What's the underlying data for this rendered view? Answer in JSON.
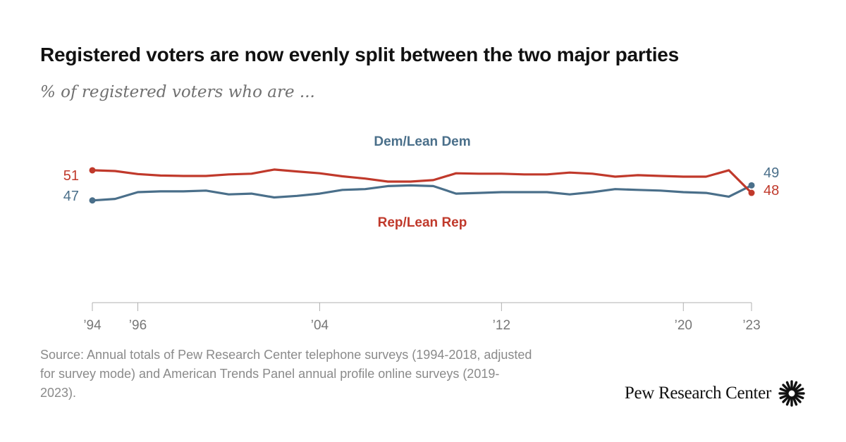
{
  "title": "Registered voters are now evenly split between the two major parties",
  "subtitle": "% of registered voters who are ...",
  "source": "Source: Annual totals of Pew Research Center telephone surveys (1994-2018, adjusted for survey mode) and American Trends Panel annual profile online surveys (2019-2023).",
  "brand": "Pew Research Center",
  "colors": {
    "dem": "#4a6f8a",
    "rep": "#c0392b",
    "axis": "#b0b0b0",
    "tick_text": "#777777"
  },
  "chart_data": {
    "type": "line",
    "title": "Registered voters are now evenly split between the two major parties",
    "subtitle": "% of registered voters who are ...",
    "x": [
      1994,
      1995,
      1996,
      1997,
      1998,
      1999,
      2000,
      2001,
      2002,
      2003,
      2004,
      2005,
      2006,
      2007,
      2008,
      2009,
      2010,
      2011,
      2012,
      2013,
      2014,
      2015,
      2016,
      2017,
      2018,
      2019,
      2020,
      2021,
      2022,
      2023
    ],
    "x_tick_values": [
      1994,
      1996,
      2004,
      2012,
      2020,
      2023
    ],
    "x_tick_labels": [
      "’94",
      "’96",
      "’04",
      "’12",
      "’20",
      "’23"
    ],
    "series": [
      {
        "name": "Dem/Lean Dem",
        "values": [
          47,
          47.2,
          48.1,
          48.2,
          48.2,
          48.3,
          47.8,
          47.9,
          47.4,
          47.6,
          47.9,
          48.4,
          48.5,
          48.9,
          49,
          48.9,
          47.9,
          48,
          48.1,
          48.1,
          48.1,
          47.8,
          48.1,
          48.5,
          48.4,
          48.3,
          48.1,
          48,
          47.5,
          49
        ],
        "start_label": "47",
        "end_label": "49"
      },
      {
        "name": "Rep/Lean Rep",
        "values": [
          51,
          50.9,
          50.5,
          50.3,
          50.25,
          50.25,
          50.45,
          50.55,
          51.1,
          50.85,
          50.6,
          50.2,
          49.9,
          49.5,
          49.5,
          49.7,
          50.6,
          50.55,
          50.55,
          50.45,
          50.45,
          50.7,
          50.55,
          50.15,
          50.35,
          50.25,
          50.15,
          50.15,
          51,
          48
        ],
        "start_label": "51",
        "end_label": "48"
      }
    ]
  }
}
